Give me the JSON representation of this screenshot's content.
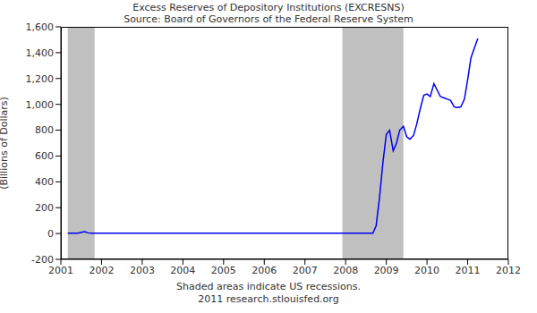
{
  "chart_data": {
    "type": "line",
    "title": "Excess Reserves of Depository Institutions (EXCRESNS)",
    "subtitle": "Source: Board of Governors of the Federal Reserve System",
    "y_label": "(Billions of Dollars)",
    "annotations": [
      "Shaded areas indicate US recessions.",
      "2011 research.stlouisfed.org"
    ],
    "x": [
      2001.17,
      2001.42,
      2001.58,
      2001.67,
      2001.75,
      2002.0,
      2003.0,
      2004.0,
      2005.0,
      2006.0,
      2007.0,
      2008.0,
      2008.67,
      2008.75,
      2008.83,
      2008.92,
      2009.0,
      2009.08,
      2009.17,
      2009.25,
      2009.33,
      2009.42,
      2009.5,
      2009.58,
      2009.67,
      2009.75,
      2009.83,
      2009.92,
      2010.0,
      2010.08,
      2010.17,
      2010.25,
      2010.33,
      2010.42,
      2010.5,
      2010.58,
      2010.67,
      2010.75,
      2010.83,
      2010.92,
      2011.0,
      2011.08,
      2011.17,
      2011.25
    ],
    "values": [
      2,
      2,
      15,
      5,
      2,
      2,
      2,
      2,
      2,
      2,
      2,
      2,
      2,
      60,
      270,
      560,
      767,
      798,
      640,
      700,
      800,
      830,
      750,
      730,
      760,
      850,
      960,
      1070,
      1080,
      1060,
      1160,
      1110,
      1060,
      1050,
      1040,
      1030,
      980,
      975,
      980,
      1040,
      1190,
      1360,
      1440,
      1510
    ],
    "color": "#0000ee",
    "recessions": [
      [
        2001.17,
        2001.83
      ],
      [
        2007.92,
        2009.42
      ]
    ],
    "xlim": [
      2001,
      2012
    ],
    "xticks": [
      2001,
      2002,
      2003,
      2004,
      2005,
      2006,
      2007,
      2008,
      2009,
      2010,
      2011,
      2012
    ],
    "ylim": [
      -200,
      1600
    ],
    "yticks": [
      -200,
      0,
      200,
      400,
      600,
      800,
      {
        "value": 1000,
        "label": "1,000"
      },
      {
        "value": 1200,
        "label": "1,200"
      },
      {
        "value": 1400,
        "label": "1,400"
      },
      {
        "value": 1600,
        "label": "1,600"
      }
    ],
    "grid": false
  }
}
